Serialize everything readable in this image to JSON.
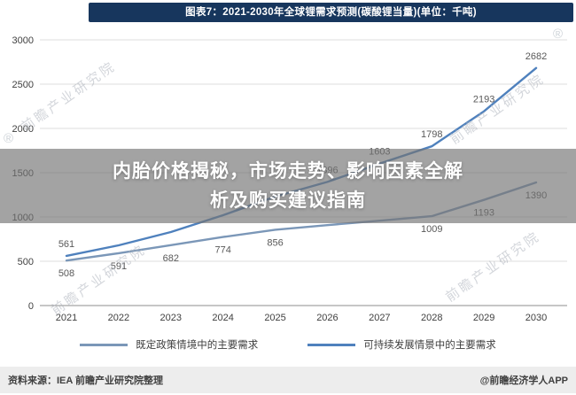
{
  "overlay": {
    "line1": "内胎价格揭秘，市场走势、影响因素全解",
    "line2": "析及购买建议指南"
  },
  "watermark": {
    "text": "前瞻产业研究院",
    "registered": "®"
  },
  "footer": {
    "source": "资料来源：IEA 前瞻产业研究院整理",
    "credit": "@前瞻经济学人APP"
  },
  "chart_data": {
    "type": "line",
    "title": "图表7：2021-2030年全球锂需求预测(碳酸锂当量)(单位：千吨)",
    "categories": [
      "2021",
      "2022",
      "2023",
      "2024",
      "2025",
      "2026",
      "2027",
      "2028",
      "2029",
      "2030"
    ],
    "series": [
      {
        "name": "既定政策情境中的主要需求",
        "color": "#7b97b8",
        "label_position": "below",
        "values": [
          508,
          591,
          682,
          774,
          856,
          908,
          958,
          1009,
          1193,
          1390
        ],
        "labels": [
          508,
          591,
          682,
          774,
          856,
          null,
          null,
          1009,
          1193,
          1390
        ]
      },
      {
        "name": "可持续发展情景中的主要需求",
        "color": "#4f81bd",
        "label_position": "above",
        "values": [
          561,
          680,
          830,
          1020,
          1230,
          1396,
          1603,
          1798,
          2193,
          2682
        ],
        "labels": [
          561,
          null,
          null,
          null,
          null,
          1396,
          1603,
          1798,
          2193,
          2682
        ]
      }
    ],
    "xlabel": "",
    "ylabel": "",
    "ylim": [
      0,
      3000
    ],
    "yticks": [
      0,
      500,
      1000,
      1500,
      2000,
      2500,
      3000
    ],
    "grid": true,
    "legend_position": "bottom"
  }
}
